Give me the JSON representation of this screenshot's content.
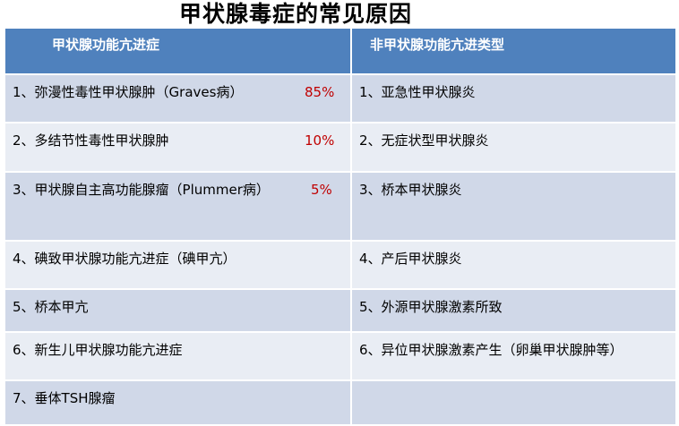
{
  "title": "甲状腺毒症的常见原因",
  "table": {
    "headers": [
      "甲状腺功能亢进症",
      "非甲状腺功能亢进类型"
    ],
    "rows": [
      {
        "left": "1、弥漫性毒性甲状腺肿（Graves病）",
        "pct": "85%",
        "right": "1、亚急性甲状腺炎"
      },
      {
        "left": "2、多结节性毒性甲状腺肿",
        "pct": "10%",
        "right": "2、无症状型甲状腺炎"
      },
      {
        "left": "3、甲状腺自主高功能腺瘤（Plummer病）",
        "pct": "5%",
        "right": "3、桥本甲状腺炎"
      },
      {
        "left": "4、碘致甲状腺功能亢进症（碘甲亢）",
        "pct": "",
        "right": "4、产后甲状腺炎"
      },
      {
        "left": "5、桥本甲亢",
        "pct": "",
        "right": "5、外源甲状腺激素所致"
      },
      {
        "left": "6、新生儿甲状腺功能亢进症",
        "pct": "",
        "right": "6、异位甲状腺激素产生（卵巢甲状腺肿等）"
      },
      {
        "left": "7、垂体TSH腺瘤",
        "pct": "",
        "right": ""
      }
    ]
  },
  "colors": {
    "header": "#4f81bd",
    "row_dark": "#d0d8e8",
    "row_light": "#e9edf4",
    "percent": "#c00000"
  }
}
